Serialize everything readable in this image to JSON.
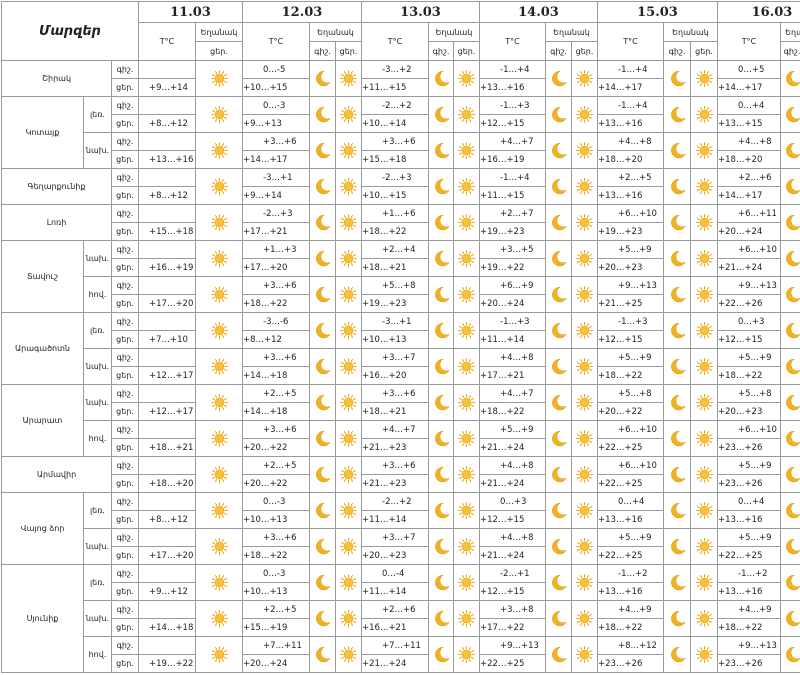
{
  "header": {
    "marz_label": "Մարզեր",
    "dates": [
      "11.03",
      "12.03",
      "13.03",
      "14.03",
      "15.03",
      "16.03"
    ],
    "temp_label": "T°C",
    "weather_label": "Եղանակ",
    "night_abbr": "գիշ.",
    "day_abbr": "ցեր."
  },
  "labels": {
    "night": "գիշ.",
    "day": "ցեր."
  },
  "regions": [
    {
      "name": "Շիրակ",
      "subs": [
        {
          "label": "",
          "day0": "+9…+14",
          "night": [
            "0…-5",
            "-3…+2",
            "-1…+4",
            "-1…+4",
            "0…+5"
          ],
          "day": [
            "+10…+15",
            "+11…+15",
            "+13…+16",
            "+14…+17",
            "+14…+17"
          ]
        }
      ]
    },
    {
      "name": "Կոտայք",
      "subs": [
        {
          "label": "լեռ.",
          "day0": "+8…+12",
          "night": [
            "0…-3",
            "-2…+2",
            "-1…+3",
            "-1…+4",
            "0…+4"
          ],
          "day": [
            "+9…+13",
            "+10…+14",
            "+12…+15",
            "+13…+16",
            "+13…+15"
          ]
        },
        {
          "label": "նախ.",
          "day0": "+13…+16",
          "night": [
            "+3…+6",
            "+3…+6",
            "+4…+7",
            "+4…+8",
            "+4…+8"
          ],
          "day": [
            "+14…+17",
            "+15…+18",
            "+16…+19",
            "+18…+20",
            "+18…+20"
          ]
        }
      ]
    },
    {
      "name": "Գեղարքունիք",
      "subs": [
        {
          "label": "",
          "day0": "+8…+12",
          "night": [
            "-3…+1",
            "-2…+3",
            "-1…+4",
            "+2…+5",
            "+2…+6"
          ],
          "day": [
            "+9…+14",
            "+10…+15",
            "+11…+15",
            "+13…+16",
            "+14…+17"
          ]
        }
      ]
    },
    {
      "name": "Լոռի",
      "subs": [
        {
          "label": "",
          "day0": "+15…+18",
          "night": [
            "-2…+3",
            "+1…+6",
            "+2…+7",
            "+6…+10",
            "+6…+11"
          ],
          "day": [
            "+17…+21",
            "+18…+22",
            "+19…+23",
            "+19…+23",
            "+20…+24"
          ]
        }
      ]
    },
    {
      "name": "Տավուշ",
      "subs": [
        {
          "label": "նախ.",
          "day0": "+16…+19",
          "night": [
            "+1…+3",
            "+2…+4",
            "+3…+5",
            "+5…+9",
            "+6…+10"
          ],
          "day": [
            "+17…+20",
            "+18…+21",
            "+19…+22",
            "+20…+23",
            "+21…+24"
          ]
        },
        {
          "label": "հով.",
          "day0": "+17…+20",
          "night": [
            "+3…+6",
            "+5…+8",
            "+6…+9",
            "+9…+13",
            "+9…+13"
          ],
          "day": [
            "+18…+22",
            "+19…+23",
            "+20…+24",
            "+21…+25",
            "+22…+26"
          ]
        }
      ]
    },
    {
      "name": "Արագածոտն",
      "subs": [
        {
          "label": "լեռ.",
          "day0": "+7…+10",
          "night": [
            "-3…-6",
            "-3…+1",
            "-1…+3",
            "-1…+3",
            "0…+3"
          ],
          "day": [
            "+8…+12",
            "+10…+13",
            "+11…+14",
            "+12…+15",
            "+12…+15"
          ]
        },
        {
          "label": "նախ.",
          "day0": "+12…+17",
          "night": [
            "+3…+6",
            "+3…+7",
            "+4…+8",
            "+5…+9",
            "+5…+9"
          ],
          "day": [
            "+14…+18",
            "+16…+20",
            "+17…+21",
            "+18…+22",
            "+18…+22"
          ]
        }
      ]
    },
    {
      "name": "Արարատ",
      "subs": [
        {
          "label": "նախ.",
          "day0": "+12…+17",
          "night": [
            "+2…+5",
            "+3…+6",
            "+4…+7",
            "+5…+8",
            "+5…+8"
          ],
          "day": [
            "+14…+18",
            "+18…+21",
            "+18…+22",
            "+20…+22",
            "+20…+23"
          ]
        },
        {
          "label": "հով.",
          "day0": "+18…+21",
          "night": [
            "+3…+6",
            "+4…+7",
            "+5…+9",
            "+6…+10",
            "+6…+10"
          ],
          "day": [
            "+20…+22",
            "+21…+23",
            "+21…+24",
            "+22…+25",
            "+23…+26"
          ]
        }
      ]
    },
    {
      "name": "Արմավիր",
      "subs": [
        {
          "label": "",
          "day0": "+18…+20",
          "night": [
            "+2…+5",
            "+3…+6",
            "+4…+8",
            "+6…+10",
            "+5…+9"
          ],
          "day": [
            "+20…+22",
            "+21…+23",
            "+21…+24",
            "+22…+25",
            "+23…+26"
          ]
        }
      ]
    },
    {
      "name": "Վայոց ձոր",
      "subs": [
        {
          "label": "լեռ.",
          "day0": "+8…+12",
          "night": [
            "0…-3",
            "-2…+2",
            "0…+3",
            "0…+4",
            "0…+4"
          ],
          "day": [
            "+10…+13",
            "+11…+14",
            "+12…+15",
            "+13…+16",
            "+13…+16"
          ]
        },
        {
          "label": "նախ.",
          "day0": "+17…+20",
          "night": [
            "+3…+6",
            "+3…+7",
            "+4…+8",
            "+5…+9",
            "+5…+9"
          ],
          "day": [
            "+18…+22",
            "+20…+23",
            "+21…+24",
            "+22…+25",
            "+22…+25"
          ]
        }
      ]
    },
    {
      "name": "Սյունիք",
      "subs": [
        {
          "label": "լեռ.",
          "day0": "+9…+12",
          "night": [
            "0…-3",
            "0…-4",
            "-2…+1",
            "-1…+2",
            "-1…+2"
          ],
          "day": [
            "+10…+13",
            "+11…+14",
            "+12…+15",
            "+13…+16",
            "+13…+16"
          ]
        },
        {
          "label": "նախ.",
          "day0": "+14…+18",
          "night": [
            "+2…+5",
            "+2…+6",
            "+3…+8",
            "+4…+9",
            "+4…+9"
          ],
          "day": [
            "+15…+19",
            "+16…+21",
            "+17…+22",
            "+18…+22",
            "+18…+22"
          ]
        },
        {
          "label": "հով.",
          "day0": "+19…+22",
          "night": [
            "+7…+11",
            "+7…+11",
            "+9…+13",
            "+8…+12",
            "+9…+13"
          ],
          "day": [
            "+20…+24",
            "+21…+24",
            "+22…+25",
            "+23…+26",
            "+23…+26"
          ]
        }
      ]
    }
  ],
  "icons": {
    "night": "moon-icon",
    "day": "sun-icon"
  },
  "colors": {
    "sun": "#f2a81d",
    "sun_core": "#f7c23b",
    "moon": "#f2b21e",
    "border": "#9a9a9a"
  }
}
